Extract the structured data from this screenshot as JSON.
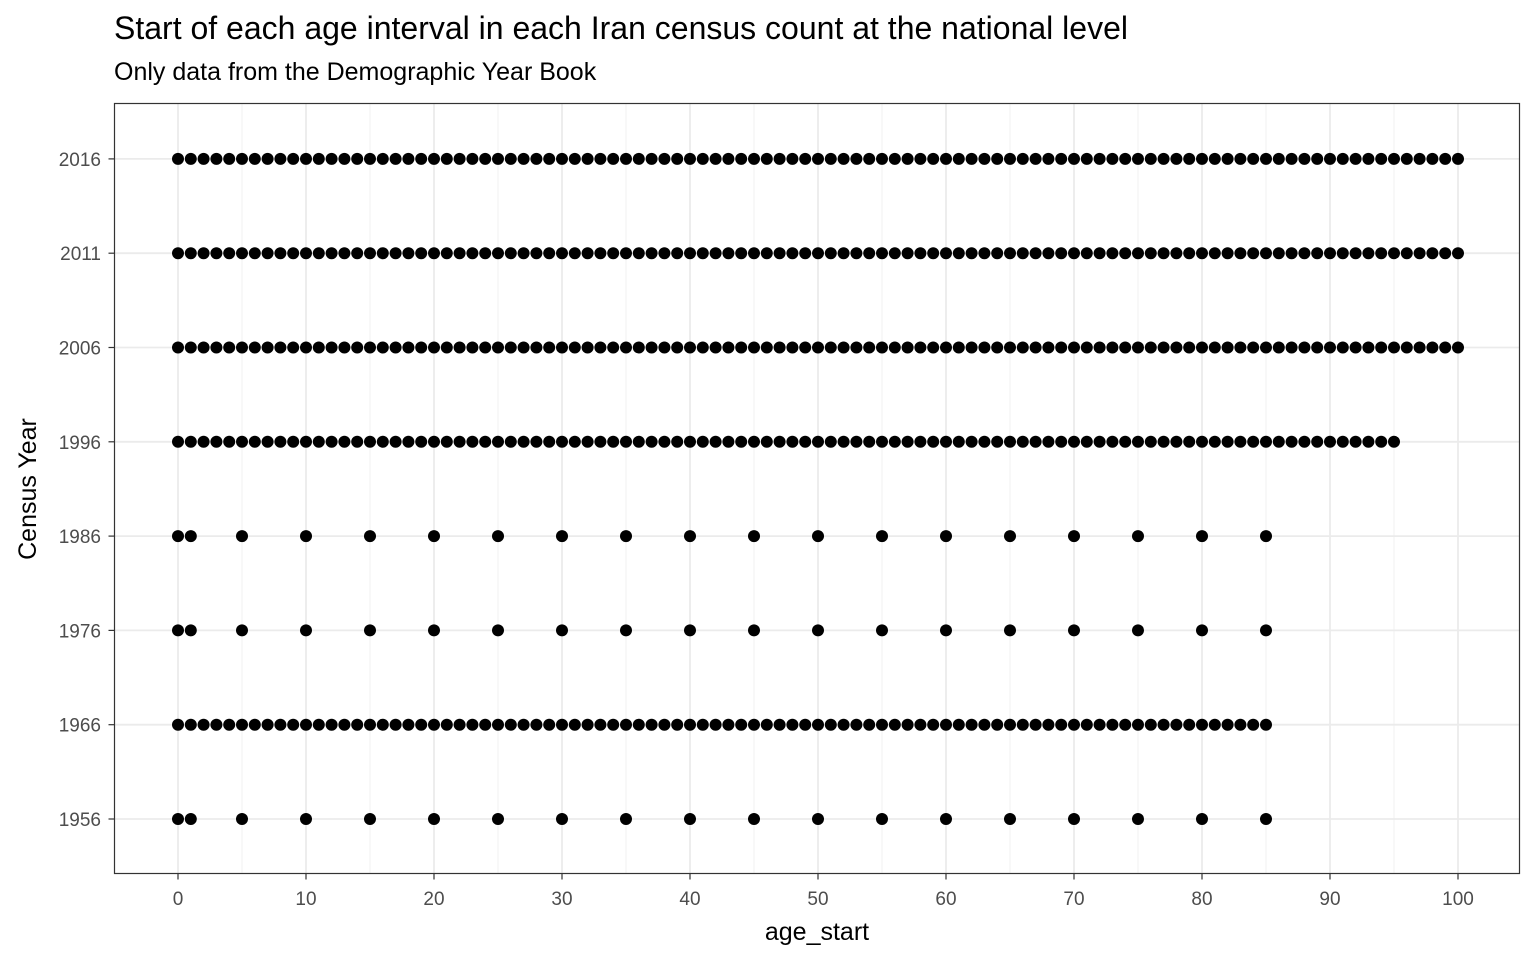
{
  "chart_data": {
    "type": "scatter",
    "title": "Start of each age interval in each Iran census count at the national level",
    "subtitle": "Only data from the Demographic Year Book",
    "xlabel": "age_start",
    "ylabel": "Census Year",
    "x_ticks": [
      "0",
      "10",
      "20",
      "30",
      "40",
      "50",
      "60",
      "70",
      "80",
      "90",
      "100"
    ],
    "y_categories": [
      "1956",
      "1966",
      "1976",
      "1986",
      "1996",
      "2006",
      "2011",
      "2016"
    ],
    "xlim": [
      -5,
      105
    ],
    "grid": true,
    "legend": "none",
    "point_color": "#000000",
    "rows": [
      {
        "year": "1956",
        "age_start": [
          0,
          1,
          5,
          10,
          15,
          20,
          25,
          30,
          35,
          40,
          45,
          50,
          55,
          60,
          65,
          70,
          75,
          80,
          85
        ]
      },
      {
        "year": "1966",
        "age_start": [
          0,
          1,
          2,
          3,
          4,
          5,
          6,
          7,
          8,
          9,
          10,
          11,
          12,
          13,
          14,
          15,
          16,
          17,
          18,
          19,
          20,
          21,
          22,
          23,
          24,
          25,
          26,
          27,
          28,
          29,
          30,
          31,
          32,
          33,
          34,
          35,
          36,
          37,
          38,
          39,
          40,
          41,
          42,
          43,
          44,
          45,
          46,
          47,
          48,
          49,
          50,
          51,
          52,
          53,
          54,
          55,
          56,
          57,
          58,
          59,
          60,
          61,
          62,
          63,
          64,
          65,
          66,
          67,
          68,
          69,
          70,
          71,
          72,
          73,
          74,
          75,
          76,
          77,
          78,
          79,
          80,
          81,
          82,
          83,
          84,
          85
        ]
      },
      {
        "year": "1976",
        "age_start": [
          0,
          1,
          5,
          10,
          15,
          20,
          25,
          30,
          35,
          40,
          45,
          50,
          55,
          60,
          65,
          70,
          75,
          80,
          85
        ]
      },
      {
        "year": "1986",
        "age_start": [
          0,
          1,
          5,
          10,
          15,
          20,
          25,
          30,
          35,
          40,
          45,
          50,
          55,
          60,
          65,
          70,
          75,
          80,
          85
        ]
      },
      {
        "year": "1996",
        "age_start": [
          0,
          1,
          2,
          3,
          4,
          5,
          6,
          7,
          8,
          9,
          10,
          11,
          12,
          13,
          14,
          15,
          16,
          17,
          18,
          19,
          20,
          21,
          22,
          23,
          24,
          25,
          26,
          27,
          28,
          29,
          30,
          31,
          32,
          33,
          34,
          35,
          36,
          37,
          38,
          39,
          40,
          41,
          42,
          43,
          44,
          45,
          46,
          47,
          48,
          49,
          50,
          51,
          52,
          53,
          54,
          55,
          56,
          57,
          58,
          59,
          60,
          61,
          62,
          63,
          64,
          65,
          66,
          67,
          68,
          69,
          70,
          71,
          72,
          73,
          74,
          75,
          76,
          77,
          78,
          79,
          80,
          81,
          82,
          83,
          84,
          85,
          86,
          87,
          88,
          89,
          90,
          91,
          92,
          93,
          94,
          95
        ]
      },
      {
        "year": "2006",
        "age_start": [
          0,
          1,
          2,
          3,
          4,
          5,
          6,
          7,
          8,
          9,
          10,
          11,
          12,
          13,
          14,
          15,
          16,
          17,
          18,
          19,
          20,
          21,
          22,
          23,
          24,
          25,
          26,
          27,
          28,
          29,
          30,
          31,
          32,
          33,
          34,
          35,
          36,
          37,
          38,
          39,
          40,
          41,
          42,
          43,
          44,
          45,
          46,
          47,
          48,
          49,
          50,
          51,
          52,
          53,
          54,
          55,
          56,
          57,
          58,
          59,
          60,
          61,
          62,
          63,
          64,
          65,
          66,
          67,
          68,
          69,
          70,
          71,
          72,
          73,
          74,
          75,
          76,
          77,
          78,
          79,
          80,
          81,
          82,
          83,
          84,
          85,
          86,
          87,
          88,
          89,
          90,
          91,
          92,
          93,
          94,
          95,
          96,
          97,
          98,
          99,
          100
        ]
      },
      {
        "year": "2011",
        "age_start": [
          0,
          1,
          2,
          3,
          4,
          5,
          6,
          7,
          8,
          9,
          10,
          11,
          12,
          13,
          14,
          15,
          16,
          17,
          18,
          19,
          20,
          21,
          22,
          23,
          24,
          25,
          26,
          27,
          28,
          29,
          30,
          31,
          32,
          33,
          34,
          35,
          36,
          37,
          38,
          39,
          40,
          41,
          42,
          43,
          44,
          45,
          46,
          47,
          48,
          49,
          50,
          51,
          52,
          53,
          54,
          55,
          56,
          57,
          58,
          59,
          60,
          61,
          62,
          63,
          64,
          65,
          66,
          67,
          68,
          69,
          70,
          71,
          72,
          73,
          74,
          75,
          76,
          77,
          78,
          79,
          80,
          81,
          82,
          83,
          84,
          85,
          86,
          87,
          88,
          89,
          90,
          91,
          92,
          93,
          94,
          95,
          96,
          97,
          98,
          99,
          100
        ]
      },
      {
        "year": "2016",
        "age_start": [
          0,
          1,
          2,
          3,
          4,
          5,
          6,
          7,
          8,
          9,
          10,
          11,
          12,
          13,
          14,
          15,
          16,
          17,
          18,
          19,
          20,
          21,
          22,
          23,
          24,
          25,
          26,
          27,
          28,
          29,
          30,
          31,
          32,
          33,
          34,
          35,
          36,
          37,
          38,
          39,
          40,
          41,
          42,
          43,
          44,
          45,
          46,
          47,
          48,
          49,
          50,
          51,
          52,
          53,
          54,
          55,
          56,
          57,
          58,
          59,
          60,
          61,
          62,
          63,
          64,
          65,
          66,
          67,
          68,
          69,
          70,
          71,
          72,
          73,
          74,
          75,
          76,
          77,
          78,
          79,
          80,
          81,
          82,
          83,
          84,
          85,
          86,
          87,
          88,
          89,
          90,
          91,
          92,
          93,
          94,
          95,
          96,
          97,
          98,
          99,
          100
        ]
      }
    ]
  }
}
